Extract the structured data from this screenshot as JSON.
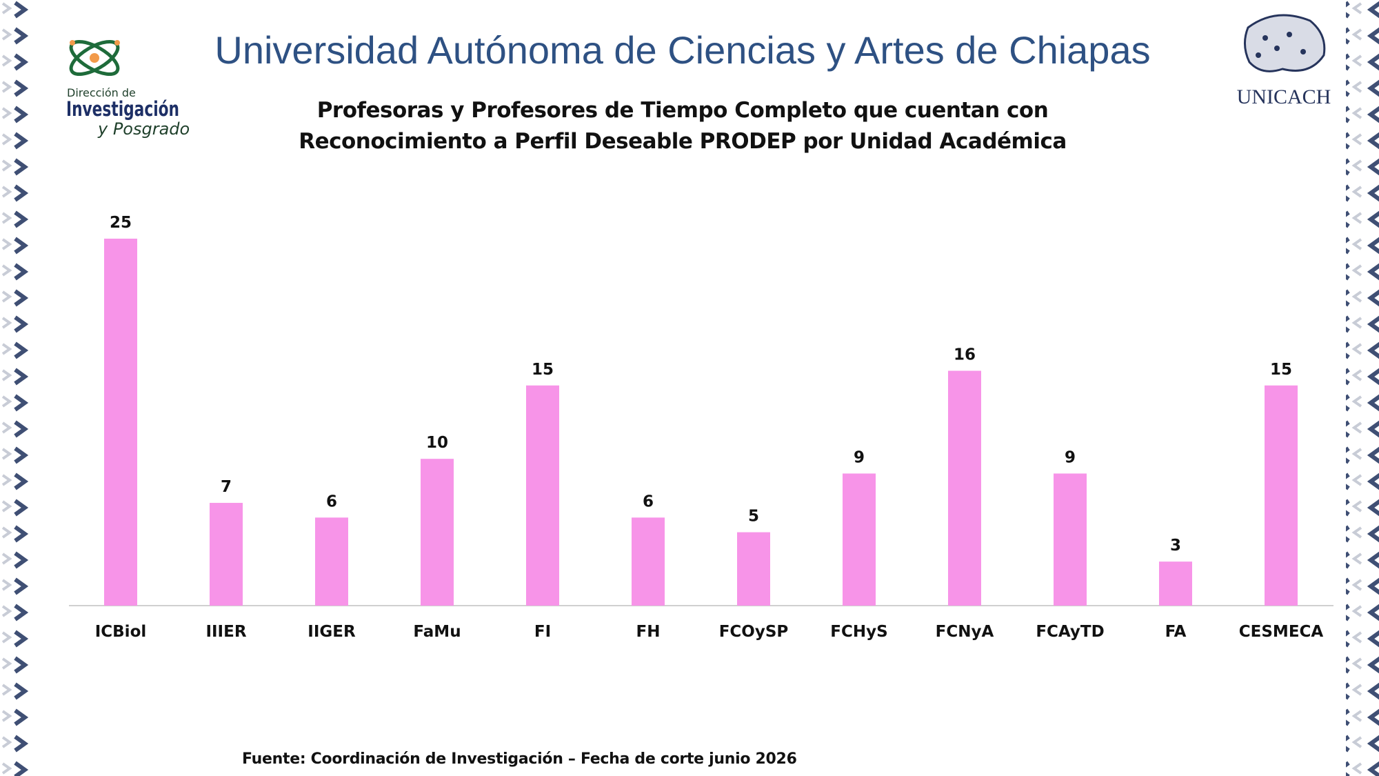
{
  "header": {
    "title": "Universidad Autónoma de Ciencias y Artes de Chiapas",
    "left_logo": {
      "line1": "Dirección de",
      "line2": "Investigación",
      "line3": "y Posgrado"
    },
    "right_logo": "UNICACH"
  },
  "chart_data": {
    "type": "bar",
    "title": "Profesoras y Profesores de Tiempo Completo que cuentan con Reconocimiento a Perfil Deseable PRODEP por Unidad Académica",
    "categories": [
      "ICBiol",
      "IIIER",
      "IIGER",
      "FaMu",
      "FI",
      "FH",
      "FCOySP",
      "FCHyS",
      "FCNyA",
      "FCAyTD",
      "FA",
      "CESMECA"
    ],
    "values": [
      25,
      7,
      6,
      10,
      15,
      6,
      5,
      9,
      16,
      9,
      3,
      15
    ],
    "color": "#f794e8"
  },
  "footer": {
    "source": "Fuente: Coordinación de Investigación – Fecha de corte junio 2026"
  }
}
